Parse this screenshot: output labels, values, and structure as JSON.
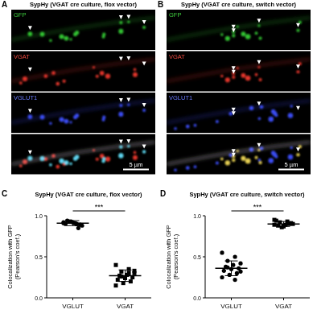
{
  "image_panels": [
    {
      "label": "A",
      "title": "SypHy (VGAT cre culture, flox vector)",
      "channels": [
        "GFP",
        "VGAT",
        "VGLUT1"
      ],
      "scale_bar": "5 µm"
    },
    {
      "label": "B",
      "title": "SypHy (VGAT cre culture, switch vector)",
      "channels": [
        "GFP",
        "VGAT",
        "VGLUT1"
      ],
      "scale_bar": "5 µm"
    }
  ],
  "chart_data": [
    {
      "type": "scatter",
      "panel_label": "C",
      "title": "SypHy (VGAT cre culture, flox vector)",
      "y_label": "Colocalization with GFP (Pearson's coef.)",
      "categories": [
        "VGLUT",
        "VGAT"
      ],
      "values": [
        [
          0.92,
          0.9,
          0.93,
          0.88,
          0.91,
          0.94,
          0.89,
          0.92,
          0.9,
          0.85,
          0.93,
          0.91,
          0.9
        ],
        [
          0.4,
          0.35,
          0.32,
          0.3,
          0.28,
          0.27,
          0.25,
          0.24,
          0.22,
          0.2,
          0.18,
          0.15,
          0.3,
          0.26,
          0.33
        ]
      ],
      "means": [
        0.91,
        0.27
      ],
      "errors": [
        0.03,
        0.07
      ],
      "color": "#000000",
      "annotation": "***",
      "ylim": [
        0,
        1.0
      ],
      "yticks": [
        {
          "value": 0,
          "label": "0.0"
        },
        {
          "value": 0.5,
          "label": "0.5"
        },
        {
          "value": 1.0,
          "label": "1.0"
        }
      ]
    },
    {
      "type": "scatter",
      "panel_label": "D",
      "title": "SypHy (VGAT cre culture, switch vector)",
      "y_label": "Colocalization with GFP (Pearson's coef.)",
      "categories": [
        "VGLUT",
        "VGAT"
      ],
      "values": [
        [
          0.55,
          0.5,
          0.45,
          0.42,
          0.4,
          0.38,
          0.36,
          0.35,
          0.33,
          0.3,
          0.28,
          0.25,
          0.22,
          0.37,
          0.32
        ],
        [
          0.95,
          0.93,
          0.92,
          0.9,
          0.89,
          0.88,
          0.91,
          0.87,
          0.94,
          0.9,
          0.86,
          0.89
        ]
      ],
      "means": [
        0.36,
        0.9
      ],
      "errors": [
        0.09,
        0.03
      ],
      "color": "#000000",
      "annotation": "***",
      "ylim": [
        0,
        1.0
      ],
      "yticks": [
        {
          "value": 0,
          "label": "0.0"
        },
        {
          "value": 0.5,
          "label": "0.5"
        },
        {
          "value": 1.0,
          "label": "1.0"
        }
      ]
    }
  ]
}
